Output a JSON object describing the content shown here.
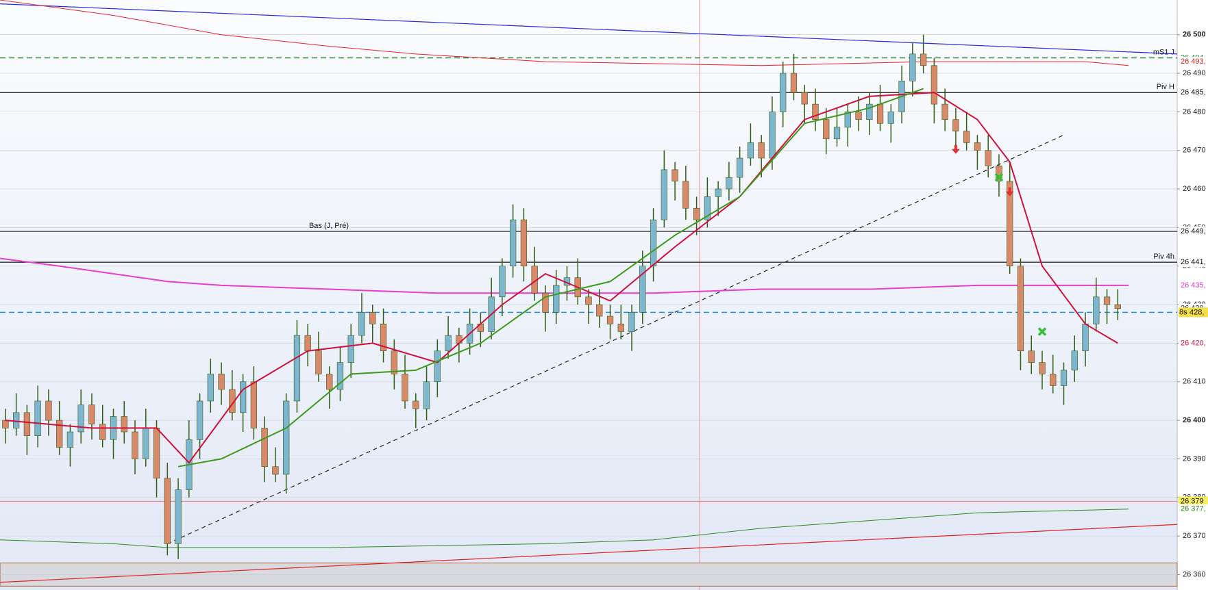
{
  "chart_data": {
    "type": "candlestick",
    "xlim": [
      -0.5,
      108.5
    ],
    "ylim": [
      26356,
      26509
    ],
    "yticks": [
      {
        "value": 26360,
        "label": "26 360"
      },
      {
        "value": 26370,
        "label": "26 370"
      },
      {
        "value": 26380,
        "label": "26 380"
      },
      {
        "value": 26390,
        "label": "26 390"
      },
      {
        "value": 26400,
        "label": "26 400"
      },
      {
        "value": 26410,
        "label": "26 410"
      },
      {
        "value": 26420,
        "label": "26 420"
      },
      {
        "value": 26430,
        "label": "26 430"
      },
      {
        "value": 26440,
        "label": "26 440"
      },
      {
        "value": 26450,
        "label": "26 450"
      },
      {
        "value": 26460,
        "label": "26 460"
      },
      {
        "value": 26470,
        "label": "26 470"
      },
      {
        "value": 26480,
        "label": "26 480"
      },
      {
        "value": 26490,
        "label": "26 490"
      },
      {
        "value": 26500,
        "label": "26 500"
      }
    ],
    "grid": true,
    "up_color": "#7fb6cf",
    "down_color": "#d9896a",
    "wick_color": "#2f5f12",
    "open": [
      26400,
      26398,
      26402,
      26396,
      26405,
      26400,
      26393,
      26397,
      26404,
      26399,
      26395,
      26401,
      26397,
      26390,
      26398,
      26385,
      26368,
      26382,
      26395,
      26405,
      26412,
      26408,
      26402,
      26410,
      26398,
      26388,
      26386,
      26405,
      26422,
      26418,
      26412,
      26408,
      26415,
      26422,
      26428,
      26425,
      26418,
      26412,
      26405,
      26403,
      26410,
      26418,
      26422,
      26420,
      26425,
      26423,
      26432,
      26440,
      26452,
      26440,
      26433,
      26428,
      26435,
      26437,
      26432,
      26430,
      26427,
      26425,
      26423,
      26428,
      26440,
      26452,
      26465,
      26462,
      26455,
      26452,
      26458,
      26460,
      26463,
      26468,
      26472,
      26468,
      26480,
      26490,
      26485,
      26482,
      26478,
      26473,
      26476,
      26480,
      26478,
      26482,
      26477,
      26480,
      26488,
      26495,
      26492,
      26482,
      26478,
      26475,
      26472,
      26470,
      26466,
      26462,
      26440,
      26418,
      26415,
      26412,
      26409,
      26413,
      26418,
      26425,
      26432,
      26430
    ],
    "high": [
      26403,
      26407,
      26404,
      26409,
      26408,
      26405,
      26399,
      26408,
      26407,
      26404,
      26403,
      26405,
      26400,
      26403,
      26400,
      26389,
      26385,
      26400,
      26407,
      26416,
      26415,
      26413,
      26412,
      26414,
      26401,
      26393,
      26407,
      26426,
      26425,
      26423,
      26414,
      26419,
      26425,
      26433,
      26430,
      26429,
      26421,
      26417,
      26407,
      26414,
      26421,
      26427,
      26424,
      26429,
      26428,
      26437,
      26442,
      26456,
      26455,
      26445,
      26435,
      26439,
      26440,
      26442,
      26434,
      26434,
      26430,
      26430,
      26430,
      26444,
      26455,
      26470,
      26467,
      26466,
      26458,
      26463,
      26462,
      26467,
      26471,
      26477,
      26474,
      26484,
      26493,
      26495,
      26487,
      26486,
      26481,
      26481,
      26482,
      26484,
      26485,
      26487,
      26482,
      26492,
      26498,
      26500,
      26494,
      26486,
      26481,
      26480,
      26474,
      26474,
      26469,
      26467,
      26442,
      26422,
      26418,
      26417,
      26415,
      26422,
      26428,
      26437,
      26434,
      26434
    ],
    "low": [
      26394,
      26396,
      26391,
      26393,
      26396,
      26391,
      26388,
      26394,
      26395,
      26393,
      26390,
      26394,
      26386,
      26388,
      26380,
      26365,
      26364,
      26380,
      26390,
      26402,
      26404,
      26400,
      26397,
      26395,
      26384,
      26384,
      26381,
      26402,
      26414,
      26410,
      26403,
      26405,
      26411,
      26420,
      26420,
      26415,
      26408,
      26403,
      26398,
      26400,
      26406,
      26416,
      26415,
      26417,
      26419,
      26421,
      26427,
      26437,
      26436,
      26431,
      26423,
      26425,
      26431,
      26430,
      26425,
      26424,
      26421,
      26421,
      26418,
      26425,
      26436,
      26450,
      26457,
      26452,
      26448,
      26450,
      26453,
      26457,
      26459,
      26466,
      26463,
      26465,
      26476,
      26483,
      26477,
      26475,
      26469,
      26471,
      26471,
      26475,
      26474,
      26475,
      26472,
      26477,
      26484,
      26490,
      26477,
      26475,
      26471,
      26470,
      26465,
      26463,
      26458,
      26438,
      26413,
      26412,
      26408,
      26407,
      26404,
      26410,
      26414,
      26423,
      26425,
      26426
    ],
    "close": [
      26398,
      26402,
      26396,
      26405,
      26400,
      26393,
      26397,
      26404,
      26399,
      26395,
      26401,
      26397,
      26390,
      26398,
      26385,
      26368,
      26382,
      26395,
      26405,
      26412,
      26408,
      26402,
      26410,
      26398,
      26388,
      26386,
      26405,
      26422,
      26418,
      26412,
      26408,
      26415,
      26422,
      26428,
      26425,
      26418,
      26412,
      26405,
      26403,
      26410,
      26418,
      26422,
      26420,
      26425,
      26423,
      26432,
      26440,
      26452,
      26440,
      26433,
      26428,
      26435,
      26437,
      26432,
      26430,
      26427,
      26425,
      26423,
      26428,
      26440,
      26452,
      26465,
      26462,
      26455,
      26452,
      26458,
      26460,
      26463,
      26468,
      26472,
      26468,
      26480,
      26490,
      26485,
      26482,
      26478,
      26473,
      26476,
      26480,
      26478,
      26482,
      26477,
      26480,
      26488,
      26495,
      26492,
      26482,
      26478,
      26475,
      26472,
      26470,
      26466,
      26462,
      26440,
      26418,
      26415,
      26412,
      26409,
      26413,
      26418,
      26425,
      26432,
      26430,
      26429
    ],
    "overlays": [
      {
        "color": "#d0103a",
        "width": 2,
        "x": [
          0,
          8,
          14,
          17,
          22,
          28,
          34,
          40,
          46,
          50,
          56,
          62,
          68,
          74,
          80,
          86,
          90,
          93,
          96,
          100,
          103
        ],
        "values": [
          26400,
          26398,
          26398,
          26389,
          26408,
          26418,
          26420,
          26415,
          26430,
          26438,
          26431,
          26445,
          26458,
          26478,
          26484,
          26485,
          26478,
          26467,
          26440,
          26425,
          26420
        ]
      },
      {
        "color": "#3d9a1a",
        "width": 2,
        "x": [
          16,
          20,
          26,
          32,
          38,
          44,
          50,
          56,
          62,
          68,
          74,
          80,
          85
        ],
        "values": [
          26388,
          26390,
          26398,
          26412,
          26413,
          26420,
          26432,
          26436,
          26448,
          26458,
          26477,
          26481,
          26486
        ]
      },
      {
        "color": "#e8202a",
        "width": 1,
        "x": [
          -0.5,
          10,
          20,
          30,
          38,
          50,
          70,
          85,
          100,
          104
        ],
        "values": [
          26509,
          26505,
          26500,
          26497,
          26495,
          26493,
          26492,
          26493,
          26493,
          26492
        ]
      },
      {
        "color": "#e83cd0",
        "width": 2,
        "x": [
          -0.5,
          5,
          10,
          15,
          20,
          30,
          40,
          50,
          60,
          70,
          80,
          90,
          104
        ],
        "values": [
          26442,
          26440,
          26438,
          26436,
          26435,
          26434,
          26433,
          26433,
          26433,
          26434,
          26434,
          26435,
          26435
        ]
      },
      {
        "color": "#2e8b1e",
        "width": 1,
        "x": [
          -0.5,
          10,
          15,
          20,
          30,
          50,
          60,
          70,
          80,
          90,
          104
        ],
        "values": [
          26369,
          26368,
          26367,
          26367,
          26367,
          26368,
          26369,
          26372,
          26374,
          26376,
          26377
        ]
      }
    ],
    "trendlines": [
      {
        "color": "#2a2ad0",
        "dash": false,
        "x": [
          -0.5,
          108.5
        ],
        "values": [
          26508,
          26495
        ]
      },
      {
        "color": "#e02020",
        "dash": false,
        "x": [
          -0.5,
          108.5
        ],
        "values": [
          26358,
          26373
        ]
      },
      {
        "color": "#222222",
        "dash": true,
        "x": [
          15,
          98
        ],
        "values": [
          26368,
          26474
        ]
      }
    ],
    "levels": [
      {
        "value": 26494,
        "text": "mS1 J",
        "color": "#2e8b2e",
        "dash": true,
        "label_position": "right"
      },
      {
        "value": 26485,
        "text": "Piv H",
        "color": "#111111",
        "dash": false,
        "label_position": "right"
      },
      {
        "value": 26449,
        "text": "Bas (J, Pré)",
        "color": "#111111",
        "dash": false,
        "label_position": "middle"
      },
      {
        "value": 26441,
        "text": "Piv 4h",
        "color": "#111111",
        "dash": false,
        "label_position": "right"
      },
      {
        "value": 26428,
        "color": "#1e90e0",
        "dash": true
      },
      {
        "value": 26379,
        "color": "#f08080",
        "dash": false
      }
    ],
    "band": {
      "values": [
        26357,
        26363
      ],
      "color": "#d9d9e0"
    },
    "signals": [
      {
        "x": 88,
        "value": 26470,
        "shape": "arrow-down",
        "color": "#e03030"
      },
      {
        "x": 93,
        "value": 26459,
        "shape": "arrow-down",
        "color": "#e03030"
      },
      {
        "x": 92,
        "value": 26463,
        "shape": "cross",
        "color": "#30c030"
      },
      {
        "x": 96,
        "value": 26423,
        "shape": "cross",
        "color": "#30c030"
      }
    ],
    "price_tags": [
      {
        "value": 26494,
        "label": "26 494,",
        "color": "#2e8b2e",
        "background": "#ffffff"
      },
      {
        "value": 26493,
        "label": "26 493,",
        "color": "#e02020",
        "background": "#ffffff"
      },
      {
        "value": 26485,
        "label": "26 485,",
        "color": "#111111",
        "background": "#ffffff"
      },
      {
        "value": 26449,
        "label": "26 449,",
        "color": "#111111",
        "background": "#ffffff"
      },
      {
        "value": 26441,
        "label": "26 441,",
        "color": "#111111",
        "background": "#ffffff"
      },
      {
        "value": 26435,
        "label": "26 435,",
        "color": "#e03cc8",
        "background": "#ffffff"
      },
      {
        "value": 26429,
        "label": "26 429,",
        "color": "#333333",
        "background": "#ffffff"
      },
      {
        "value": 26428,
        "label": "428,",
        "prefix": "8s",
        "color": "#111111",
        "background": "#f5e04a"
      },
      {
        "value": 26420,
        "label": "26 420,",
        "color": "#d0103a",
        "background": "#ffffff"
      },
      {
        "value": 26379,
        "label": "26 379",
        "color": "#111111",
        "background": "#f8f060"
      },
      {
        "value": 26377,
        "label": "26 377,",
        "color": "#2e8b1e",
        "background": "#ffffff"
      }
    ]
  }
}
